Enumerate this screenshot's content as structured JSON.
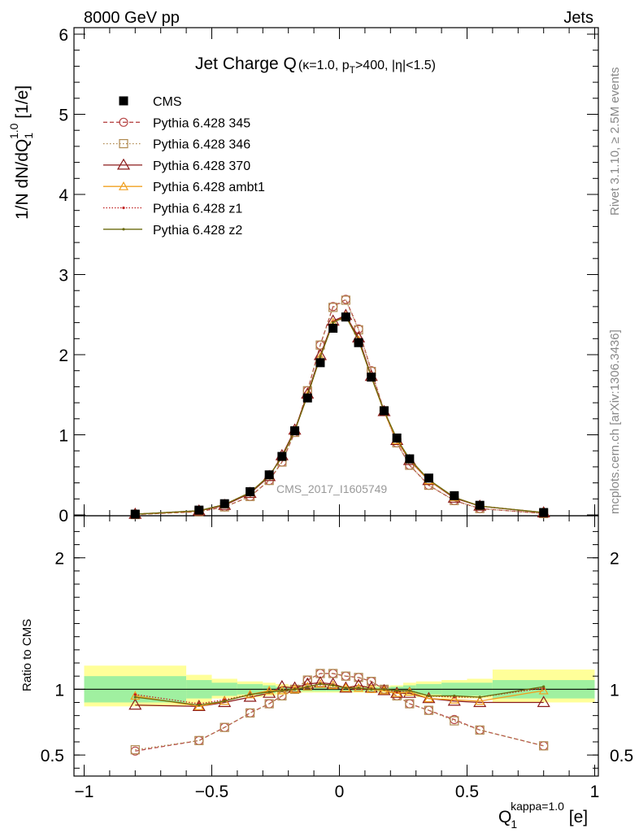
{
  "header": {
    "left": "8000 GeV pp",
    "right": "Jets"
  },
  "side": {
    "rivet": "Rivet 3.1.10, ≥ 2.5M events",
    "mcplots": "mcplots.cern.ch [arXiv:1306.3436]"
  },
  "watermark": "CMS_2017_I1605749",
  "title": {
    "main": "Jet Charge Q",
    "kappa": "(κ=1.0, p",
    "pt_sub": "T",
    "rest": ">400, |η|<1.5)"
  },
  "ylabel": {
    "pre": "1/N dN/dQ",
    "sub": "1",
    "sup": "1.0",
    "post": " [1/e]"
  },
  "xlabel": {
    "base": "Q",
    "sub": "1",
    "sup": "kappa=1.0",
    "unit": " [e]"
  },
  "ratio_label": "Ratio to CMS",
  "colors": {
    "CMS": "#000000",
    "p345": "#b84a4a",
    "p346": "#b08a50",
    "p370": "#8b1a1a",
    "ambt1": "#f0a020",
    "z1": "#c02020",
    "z2": "#6b6b10",
    "band_inner": "#a0f0a0",
    "band_outer": "#ffff99"
  },
  "chart_data": {
    "type": "line",
    "xlim": [
      -1.0,
      1.0
    ],
    "main_ylim": [
      0,
      6
    ],
    "ratio_ylim": [
      0.34,
      2.32
    ],
    "x_ticks": [
      -1,
      -0.5,
      0,
      0.5,
      1
    ],
    "x_tick_labels": [
      "−1",
      "−0.5",
      "0",
      "0.5",
      "1"
    ],
    "main_y_ticks": [
      0,
      1,
      2,
      3,
      4,
      5,
      6
    ],
    "main_y_tick_labels": [
      "0",
      "1",
      "2",
      "3",
      "4",
      "5",
      "6"
    ],
    "ratio_y_ticks": [
      0.5,
      1,
      2
    ],
    "ratio_y_tick_labels": [
      "0.5",
      "1",
      "2"
    ],
    "x": [
      -0.8,
      -0.55,
      -0.45,
      -0.35,
      -0.275,
      -0.225,
      -0.175,
      -0.125,
      -0.075,
      -0.025,
      0.025,
      0.075,
      0.125,
      0.175,
      0.225,
      0.275,
      0.35,
      0.45,
      0.55,
      0.8
    ],
    "bins": [
      [
        -1.0,
        -0.6
      ],
      [
        -0.6,
        -0.5
      ],
      [
        -0.5,
        -0.4
      ],
      [
        -0.4,
        -0.3
      ],
      [
        -0.3,
        -0.25
      ],
      [
        -0.25,
        -0.2
      ],
      [
        -0.2,
        -0.15
      ],
      [
        -0.15,
        -0.1
      ],
      [
        -0.1,
        -0.05
      ],
      [
        -0.05,
        0.0
      ],
      [
        0.0,
        0.05
      ],
      [
        0.05,
        0.1
      ],
      [
        0.1,
        0.15
      ],
      [
        0.15,
        0.2
      ],
      [
        0.2,
        0.25
      ],
      [
        0.25,
        0.3
      ],
      [
        0.3,
        0.4
      ],
      [
        0.4,
        0.5
      ],
      [
        0.5,
        0.6
      ],
      [
        0.6,
        1.0
      ]
    ],
    "band_inner": [
      [
        0.9,
        1.1
      ],
      [
        0.93,
        1.07
      ],
      [
        0.95,
        1.05
      ],
      [
        0.96,
        1.04
      ],
      [
        0.97,
        1.03
      ],
      [
        0.98,
        1.02
      ],
      [
        0.985,
        1.015
      ],
      [
        0.985,
        1.015
      ],
      [
        0.985,
        1.015
      ],
      [
        0.985,
        1.015
      ],
      [
        0.985,
        1.015
      ],
      [
        0.985,
        1.015
      ],
      [
        0.985,
        1.015
      ],
      [
        0.985,
        1.015
      ],
      [
        0.98,
        1.02
      ],
      [
        0.97,
        1.03
      ],
      [
        0.96,
        1.04
      ],
      [
        0.95,
        1.05
      ],
      [
        0.95,
        1.05
      ],
      [
        0.93,
        1.07
      ]
    ],
    "band_outer": [
      [
        0.87,
        1.18
      ],
      [
        0.89,
        1.11
      ],
      [
        0.93,
        1.08
      ],
      [
        0.94,
        1.06
      ],
      [
        0.95,
        1.05
      ],
      [
        0.96,
        1.04
      ],
      [
        0.97,
        1.03
      ],
      [
        0.975,
        1.025
      ],
      [
        0.975,
        1.025
      ],
      [
        0.975,
        1.025
      ],
      [
        0.975,
        1.025
      ],
      [
        0.975,
        1.025
      ],
      [
        0.975,
        1.025
      ],
      [
        0.975,
        1.025
      ],
      [
        0.97,
        1.03
      ],
      [
        0.95,
        1.05
      ],
      [
        0.94,
        1.06
      ],
      [
        0.93,
        1.07
      ],
      [
        0.93,
        1.08
      ],
      [
        0.9,
        1.15
      ]
    ],
    "series": [
      {
        "key": "CMS",
        "name": "CMS",
        "marker": "square",
        "dash": "none",
        "main": [
          0.01,
          0.06,
          0.14,
          0.29,
          0.5,
          0.73,
          1.05,
          1.46,
          1.9,
          2.33,
          2.47,
          2.15,
          1.72,
          1.3,
          0.96,
          0.7,
          0.46,
          0.24,
          0.12,
          0.03
        ],
        "ratio": []
      },
      {
        "key": "p345",
        "name": "Pythia 6.428 345",
        "marker": "circle",
        "dash": "5,3",
        "main": [
          0.005,
          0.04,
          0.1,
          0.23,
          0.43,
          0.66,
          1.03,
          1.55,
          2.12,
          2.6,
          2.69,
          2.32,
          1.8,
          1.3,
          0.9,
          0.62,
          0.37,
          0.18,
          0.08,
          0.017
        ],
        "ratio": [
          0.53,
          0.61,
          0.71,
          0.82,
          0.89,
          0.95,
          1.0,
          1.07,
          1.12,
          1.12,
          1.1,
          1.09,
          1.06,
          1.0,
          0.95,
          0.89,
          0.84,
          0.77,
          0.69,
          0.57
        ]
      },
      {
        "key": "p346",
        "name": "Pythia 6.428 346",
        "marker": "square-open",
        "dash": "1.5,2.5",
        "main": [
          0.005,
          0.04,
          0.1,
          0.23,
          0.43,
          0.66,
          1.03,
          1.55,
          2.12,
          2.59,
          2.68,
          2.31,
          1.79,
          1.3,
          0.9,
          0.62,
          0.37,
          0.18,
          0.08,
          0.017
        ],
        "ratio": [
          0.54,
          0.61,
          0.71,
          0.82,
          0.89,
          0.95,
          1.0,
          1.07,
          1.12,
          1.12,
          1.1,
          1.09,
          1.06,
          1.0,
          0.95,
          0.89,
          0.84,
          0.76,
          0.69,
          0.57
        ]
      },
      {
        "key": "p370",
        "name": "Pythia 6.428 370",
        "marker": "triangle",
        "dash": "none",
        "main": [
          0.009,
          0.05,
          0.12,
          0.27,
          0.48,
          0.74,
          1.06,
          1.51,
          1.99,
          2.42,
          2.49,
          2.21,
          1.73,
          1.29,
          0.93,
          0.68,
          0.43,
          0.21,
          0.11,
          0.027
        ],
        "ratio": [
          0.88,
          0.87,
          0.9,
          0.94,
          0.97,
          1.02,
          1.01,
          1.04,
          1.05,
          1.04,
          1.01,
          1.03,
          1.01,
          0.99,
          0.97,
          0.97,
          0.93,
          0.91,
          0.9,
          0.9
        ]
      },
      {
        "key": "ambt1",
        "name": "Pythia 6.428 ambt1",
        "marker": "triangle-small",
        "dash": "none",
        "main": [
          0.0095,
          0.05,
          0.13,
          0.28,
          0.49,
          0.72,
          1.05,
          1.49,
          1.97,
          2.4,
          2.48,
          2.18,
          1.72,
          1.29,
          0.93,
          0.69,
          0.43,
          0.22,
          0.11,
          0.03
        ],
        "ratio": [
          0.95,
          0.87,
          0.91,
          0.96,
          0.99,
          0.99,
          1.0,
          1.02,
          1.04,
          1.03,
          1.01,
          1.01,
          1.0,
          0.99,
          0.97,
          0.98,
          0.93,
          0.92,
          0.91,
          0.99
        ]
      },
      {
        "key": "z1",
        "name": "Pythia 6.428 z1",
        "marker": "dot",
        "dash": "1.5,2",
        "main": [
          0.0095,
          0.053,
          0.13,
          0.28,
          0.49,
          0.72,
          1.05,
          1.49,
          1.97,
          2.41,
          2.49,
          2.19,
          1.73,
          1.3,
          0.94,
          0.69,
          0.44,
          0.22,
          0.11,
          0.03
        ],
        "ratio": [
          0.96,
          0.89,
          0.92,
          0.96,
          0.98,
          0.99,
          1.0,
          1.02,
          1.04,
          1.03,
          1.01,
          1.01,
          1.0,
          1.0,
          0.98,
          0.99,
          0.95,
          0.94,
          0.94,
          1.01
        ]
      },
      {
        "key": "z2",
        "name": "Pythia 6.428 z2",
        "marker": "dot",
        "dash": "none",
        "main": [
          0.0095,
          0.053,
          0.13,
          0.28,
          0.49,
          0.72,
          1.05,
          1.49,
          1.97,
          2.4,
          2.48,
          2.18,
          1.72,
          1.3,
          0.95,
          0.7,
          0.44,
          0.22,
          0.11,
          0.03
        ],
        "ratio": [
          0.94,
          0.88,
          0.91,
          0.96,
          0.98,
          0.99,
          1.0,
          1.02,
          1.04,
          1.03,
          1.01,
          1.01,
          1.0,
          1.0,
          0.99,
          0.99,
          0.95,
          0.95,
          0.94,
          1.02
        ]
      }
    ]
  }
}
